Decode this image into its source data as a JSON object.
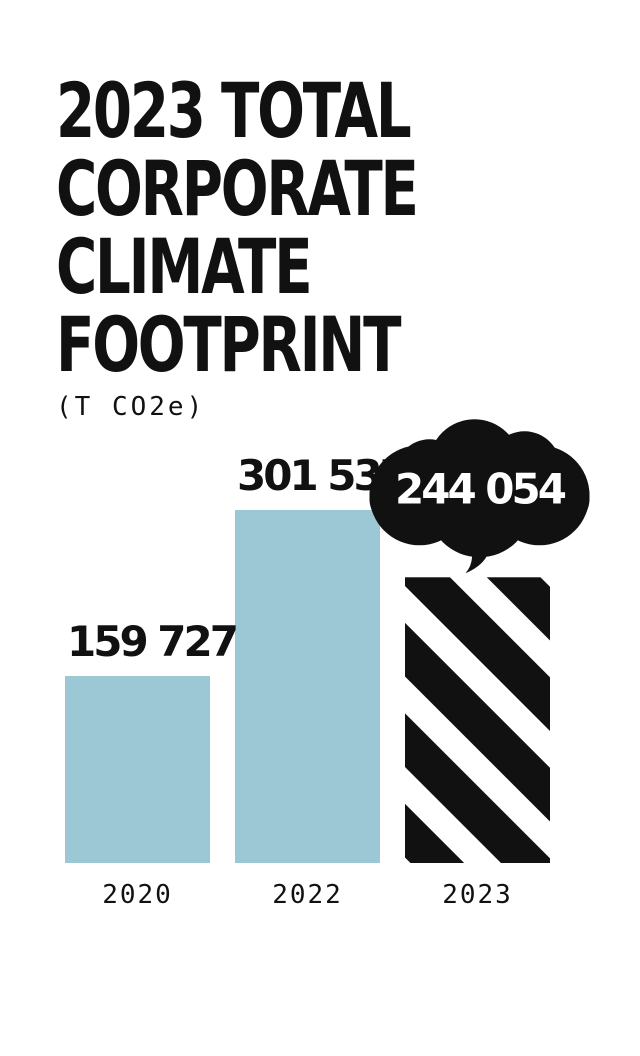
{
  "title_lines": [
    "2023 TOTAL",
    "CORPORATE",
    "CLIMATE",
    "FOOTPRINT"
  ],
  "unit": "(T CO2e)",
  "colors": {
    "bar": "#9cc7d4",
    "highlight": "#111111",
    "text": "#111111",
    "bubble_text": "#ffffff"
  },
  "chart_data": {
    "type": "bar",
    "categories": [
      "2020",
      "2022",
      "2023"
    ],
    "values": [
      159727,
      301537,
      244054
    ],
    "value_labels": [
      "159 727",
      "301 537",
      "244 054"
    ],
    "highlight_category": "2023",
    "highlight_style": "striped bar with cloud callout",
    "ylim": [
      0,
      330000
    ],
    "grid": false,
    "legend": "none",
    "title": "2023 TOTAL CORPORATE CLIMATE FOOTPRINT",
    "ylabel": "(T CO2e)",
    "xlabel": ""
  }
}
